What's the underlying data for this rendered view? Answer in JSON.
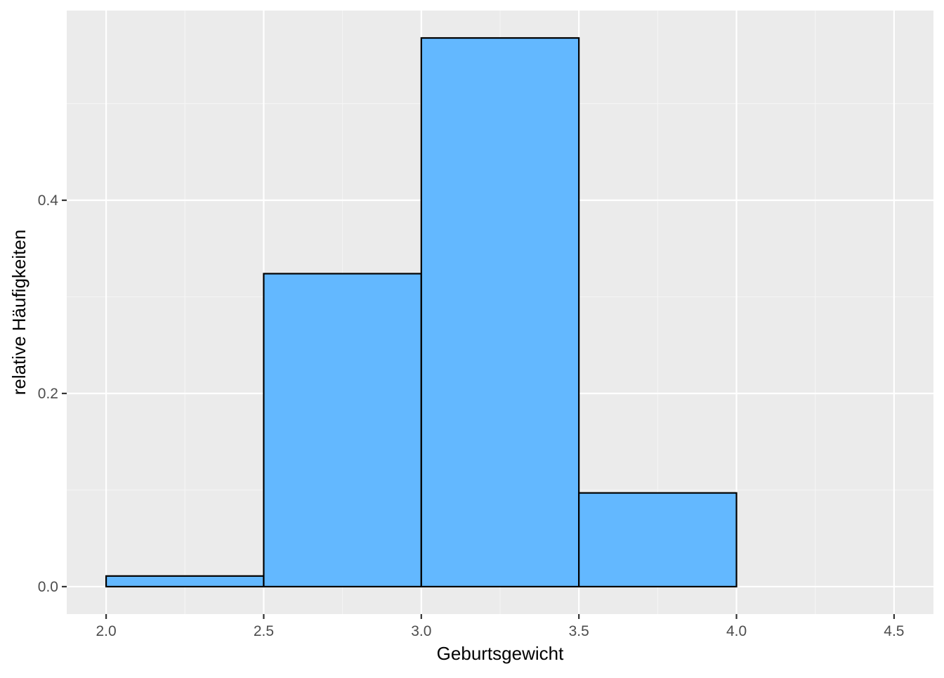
{
  "chart_data": {
    "type": "bar",
    "subtype": "histogram",
    "title": "",
    "xlabel": "Geburtsgewicht",
    "ylabel": "relative Häufigkeiten",
    "bins": [
      {
        "from": 2.0,
        "to": 2.5,
        "value": 0.011
      },
      {
        "from": 2.5,
        "to": 3.0,
        "value": 0.324
      },
      {
        "from": 3.0,
        "to": 3.5,
        "value": 0.568
      },
      {
        "from": 3.5,
        "to": 4.0,
        "value": 0.097
      },
      {
        "from": 4.0,
        "to": 4.5,
        "value": 0.0
      }
    ],
    "xticks": [
      "2.0",
      "2.5",
      "3.0",
      "3.5",
      "4.0",
      "4.5"
    ],
    "xtick_values": [
      2.0,
      2.5,
      3.0,
      3.5,
      4.0,
      4.5
    ],
    "yticks": [
      "0.0",
      "0.2",
      "0.4"
    ],
    "ytick_values": [
      0.0,
      0.2,
      0.4
    ],
    "xlim": [
      1.875,
      4.625
    ],
    "ylim": [
      -0.0284,
      0.5964
    ],
    "grid": true,
    "legend": "none",
    "colors": {
      "bar_fill": "#63B8FF",
      "bar_stroke": "#000000",
      "panel_background": "#EBEBEB",
      "grid_major": "#FFFFFF",
      "grid_minor": "#F5F5F5",
      "tick_label": "#4D4D4D",
      "axis_title": "#000000"
    }
  }
}
